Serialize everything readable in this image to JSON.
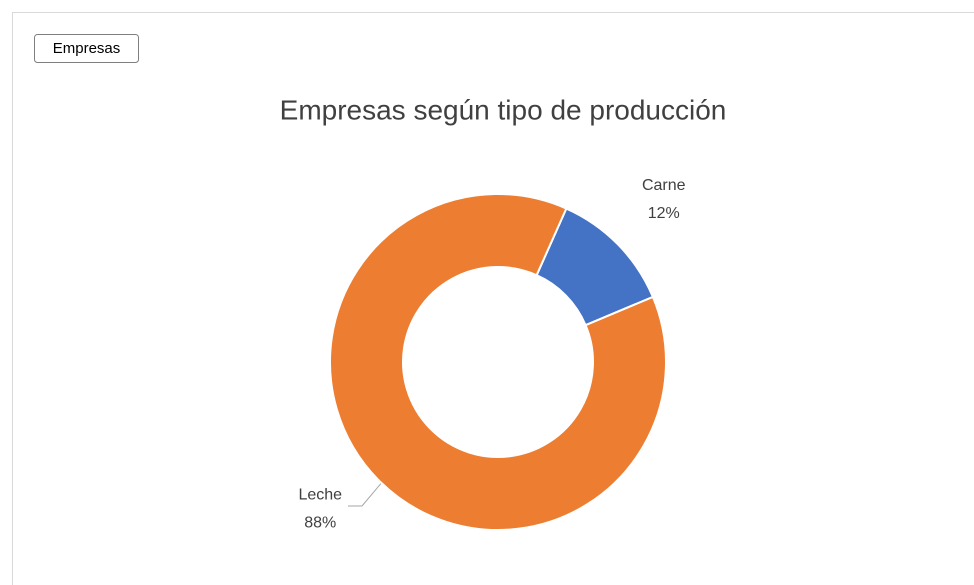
{
  "field_button": "Empresas",
  "chart_data": {
    "type": "pie",
    "title": "Empresas según tipo de producción",
    "categories": [
      "Carne",
      "Leche"
    ],
    "values": [
      12,
      88
    ],
    "value_labels": [
      "12%",
      "88%"
    ],
    "colors": [
      "#4472c4",
      "#ed7d31"
    ],
    "donut": true
  }
}
